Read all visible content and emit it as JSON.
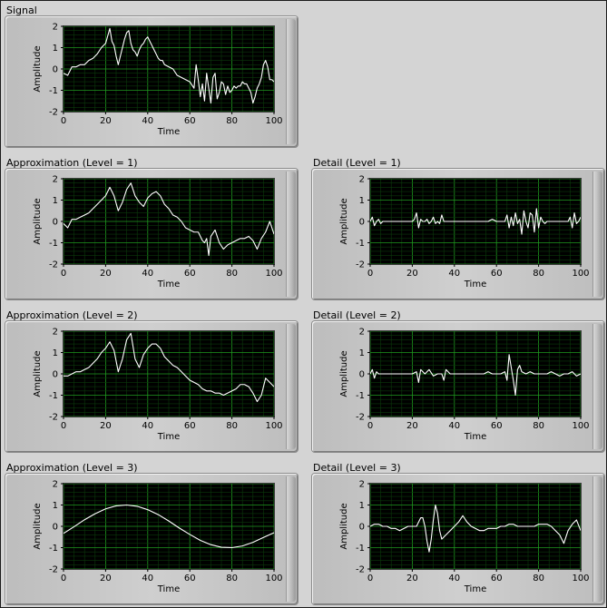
{
  "chart_data": [
    {
      "type": "line",
      "title": "Signal",
      "xlabel": "Time",
      "ylabel": "Amplitude",
      "xlim": [
        0,
        100
      ],
      "ylim": [
        -2,
        2
      ],
      "xticks": [
        "0",
        "20",
        "40",
        "60",
        "80",
        "100"
      ],
      "yticks": [
        "2",
        "1",
        "0",
        "-1",
        "-2"
      ],
      "grid": true,
      "colors": {
        "plot_bg": "#000000",
        "grid_major": "#1f9a1f",
        "grid_minor": "#0b3a0b",
        "line": "#ffffff"
      },
      "series": [
        {
          "x": [
            0,
            2,
            4,
            6,
            8,
            10,
            12,
            14,
            16,
            18,
            20,
            22,
            23,
            24,
            25,
            26,
            27,
            28,
            29,
            30,
            31,
            32,
            33,
            34,
            35,
            36,
            37,
            38,
            39,
            40,
            41,
            42,
            43,
            44,
            45,
            46,
            47,
            48,
            50,
            52,
            54,
            56,
            58,
            60,
            62,
            63,
            64,
            65,
            66,
            67,
            68,
            69,
            70,
            71,
            72,
            73,
            74,
            75,
            76,
            77,
            78,
            79,
            80,
            81,
            82,
            83,
            84,
            85,
            86,
            87,
            88,
            89,
            90,
            91,
            92,
            93,
            94,
            95,
            96,
            97,
            98,
            99,
            100
          ],
          "y": [
            -0.2,
            -0.3,
            0.1,
            0.1,
            0.2,
            0.2,
            0.4,
            0.5,
            0.7,
            1.0,
            1.2,
            1.9,
            1.3,
            1.1,
            0.6,
            0.2,
            0.6,
            1.0,
            1.4,
            1.7,
            1.8,
            1.2,
            0.9,
            0.8,
            0.6,
            0.9,
            1.1,
            1.2,
            1.4,
            1.5,
            1.3,
            1.1,
            0.9,
            0.7,
            0.5,
            0.4,
            0.4,
            0.2,
            0.1,
            0.0,
            -0.3,
            -0.4,
            -0.5,
            -0.6,
            -0.9,
            0.2,
            -0.5,
            -1.3,
            -0.7,
            -1.5,
            -0.2,
            -0.9,
            -1.6,
            -0.4,
            -0.2,
            -1.4,
            -1.1,
            -0.6,
            -0.7,
            -1.2,
            -0.8,
            -1.1,
            -1.0,
            -0.8,
            -0.9,
            -0.8,
            -0.8,
            -0.6,
            -0.7,
            -0.7,
            -0.9,
            -1.1,
            -1.6,
            -1.3,
            -0.9,
            -0.7,
            -0.4,
            0.2,
            0.4,
            0.1,
            -0.5,
            -0.5,
            -0.6
          ]
        }
      ]
    },
    {
      "type": "line",
      "title": "Approximation (Level = 1)",
      "xlabel": "Time",
      "ylabel": "Amplitude",
      "xlim": [
        0,
        100
      ],
      "ylim": [
        -2,
        2
      ],
      "xticks": [
        "0",
        "20",
        "40",
        "60",
        "80",
        "100"
      ],
      "yticks": [
        "2",
        "1",
        "0",
        "-1",
        "-2"
      ],
      "grid": true,
      "colors": {
        "plot_bg": "#000000",
        "grid_major": "#1f9a1f",
        "grid_minor": "#0b3a0b",
        "line": "#ffffff"
      },
      "series": [
        {
          "x": [
            0,
            2,
            4,
            6,
            8,
            10,
            12,
            14,
            16,
            18,
            20,
            22,
            24,
            26,
            28,
            30,
            32,
            34,
            36,
            38,
            40,
            42,
            44,
            46,
            48,
            50,
            52,
            54,
            56,
            58,
            60,
            62,
            64,
            66,
            67,
            68,
            69,
            70,
            72,
            74,
            76,
            78,
            80,
            82,
            84,
            86,
            88,
            90,
            92,
            94,
            96,
            98,
            100
          ],
          "y": [
            -0.1,
            -0.3,
            0.1,
            0.1,
            0.2,
            0.3,
            0.4,
            0.6,
            0.8,
            1.0,
            1.2,
            1.6,
            1.2,
            0.5,
            0.9,
            1.5,
            1.8,
            1.2,
            0.9,
            0.7,
            1.1,
            1.3,
            1.4,
            1.2,
            0.8,
            0.6,
            0.3,
            0.2,
            0.0,
            -0.3,
            -0.4,
            -0.5,
            -0.5,
            -0.9,
            -1.0,
            -0.8,
            -1.6,
            -0.7,
            -0.4,
            -1.0,
            -1.3,
            -1.1,
            -1.0,
            -0.9,
            -0.8,
            -0.8,
            -0.7,
            -0.9,
            -1.3,
            -0.8,
            -0.5,
            0.0,
            -0.6
          ]
        }
      ]
    },
    {
      "type": "line",
      "title": "Detail (Level = 1)",
      "xlabel": "Time",
      "ylabel": "Amplitude",
      "xlim": [
        0,
        100
      ],
      "ylim": [
        -2,
        2
      ],
      "xticks": [
        "0",
        "20",
        "40",
        "60",
        "80",
        "100"
      ],
      "yticks": [
        "2",
        "1",
        "0",
        "-1",
        "-2"
      ],
      "grid": true,
      "colors": {
        "plot_bg": "#000000",
        "grid_major": "#1f9a1f",
        "grid_minor": "#0b3a0b",
        "line": "#ffffff"
      },
      "series": [
        {
          "x": [
            0,
            1,
            2,
            3,
            4,
            5,
            6,
            8,
            10,
            12,
            14,
            16,
            18,
            20,
            21,
            22,
            23,
            24,
            25,
            26,
            27,
            28,
            29,
            30,
            31,
            32,
            33,
            34,
            35,
            36,
            38,
            40,
            42,
            44,
            46,
            48,
            50,
            52,
            54,
            56,
            58,
            60,
            62,
            64,
            65,
            66,
            67,
            68,
            69,
            70,
            71,
            72,
            73,
            74,
            75,
            76,
            77,
            78,
            79,
            80,
            81,
            82,
            83,
            84,
            86,
            88,
            90,
            92,
            94,
            95,
            96,
            97,
            98,
            99,
            100
          ],
          "y": [
            0.0,
            0.2,
            -0.2,
            0.0,
            0.1,
            -0.1,
            0.0,
            0.0,
            0.0,
            0.0,
            0.0,
            0.0,
            0.0,
            0.0,
            0.1,
            0.4,
            -0.3,
            0.1,
            0.0,
            0.0,
            0.1,
            -0.1,
            0.0,
            0.2,
            -0.1,
            0.0,
            -0.1,
            0.3,
            0.0,
            0.0,
            0.0,
            0.0,
            0.0,
            0.0,
            0.0,
            0.0,
            0.0,
            0.0,
            0.0,
            0.0,
            0.1,
            0.0,
            0.0,
            0.0,
            0.3,
            -0.3,
            0.2,
            -0.2,
            0.4,
            -0.1,
            0.1,
            -0.6,
            0.5,
            0.0,
            -0.3,
            0.4,
            0.3,
            -0.5,
            0.6,
            -0.3,
            0.2,
            0.0,
            -0.1,
            0.0,
            0.0,
            0.0,
            0.0,
            0.0,
            0.0,
            0.2,
            -0.3,
            0.4,
            -0.1,
            0.0,
            0.2
          ]
        }
      ]
    },
    {
      "type": "line",
      "title": "Approximation (Level = 2)",
      "xlabel": "Time",
      "ylabel": "Amplitude",
      "xlim": [
        0,
        100
      ],
      "ylim": [
        -2,
        2
      ],
      "xticks": [
        "0",
        "20",
        "40",
        "60",
        "80",
        "100"
      ],
      "yticks": [
        "2",
        "1",
        "0",
        "-1",
        "-2"
      ],
      "grid": true,
      "colors": {
        "plot_bg": "#000000",
        "grid_major": "#1f9a1f",
        "grid_minor": "#0b3a0b",
        "line": "#ffffff"
      },
      "series": [
        {
          "x": [
            0,
            2,
            4,
            6,
            8,
            10,
            12,
            14,
            16,
            18,
            20,
            22,
            24,
            26,
            28,
            30,
            32,
            34,
            36,
            38,
            40,
            42,
            44,
            46,
            48,
            50,
            52,
            54,
            56,
            58,
            60,
            62,
            64,
            66,
            68,
            70,
            72,
            74,
            76,
            78,
            80,
            82,
            84,
            86,
            88,
            90,
            92,
            94,
            96,
            98,
            100
          ],
          "y": [
            -0.1,
            -0.1,
            0.0,
            0.1,
            0.1,
            0.2,
            0.3,
            0.5,
            0.7,
            1.0,
            1.2,
            1.5,
            1.1,
            0.1,
            0.7,
            1.6,
            1.9,
            0.7,
            0.3,
            0.9,
            1.2,
            1.4,
            1.4,
            1.2,
            0.8,
            0.6,
            0.4,
            0.3,
            0.1,
            -0.1,
            -0.3,
            -0.4,
            -0.5,
            -0.7,
            -0.8,
            -0.8,
            -0.9,
            -0.9,
            -1.0,
            -0.9,
            -0.8,
            -0.7,
            -0.5,
            -0.5,
            -0.6,
            -0.9,
            -1.3,
            -1.0,
            -0.2,
            -0.4,
            -0.6
          ]
        }
      ]
    },
    {
      "type": "line",
      "title": "Detail (Level = 2)",
      "xlabel": "Time",
      "ylabel": "Amplitude",
      "xlim": [
        0,
        100
      ],
      "ylim": [
        -2,
        2
      ],
      "xticks": [
        "0",
        "20",
        "40",
        "60",
        "80",
        "100"
      ],
      "yticks": [
        "2",
        "1",
        "0",
        "-1",
        "-2"
      ],
      "grid": true,
      "colors": {
        "plot_bg": "#000000",
        "grid_major": "#1f9a1f",
        "grid_minor": "#0b3a0b",
        "line": "#ffffff"
      },
      "series": [
        {
          "x": [
            0,
            1,
            2,
            3,
            4,
            6,
            8,
            10,
            12,
            14,
            16,
            18,
            20,
            22,
            23,
            24,
            26,
            28,
            30,
            32,
            34,
            35,
            36,
            38,
            40,
            42,
            44,
            46,
            48,
            50,
            52,
            54,
            56,
            58,
            60,
            62,
            64,
            65,
            66,
            67,
            68,
            69,
            70,
            71,
            72,
            74,
            76,
            78,
            80,
            82,
            84,
            86,
            88,
            90,
            92,
            94,
            96,
            98,
            100
          ],
          "y": [
            0.0,
            0.2,
            -0.2,
            0.1,
            0.0,
            0.0,
            0.0,
            0.0,
            0.0,
            0.0,
            0.0,
            0.0,
            0.0,
            0.1,
            -0.4,
            0.2,
            0.0,
            0.2,
            -0.1,
            0.0,
            0.0,
            -0.3,
            0.2,
            0.0,
            0.0,
            0.0,
            0.0,
            0.0,
            0.0,
            0.0,
            0.0,
            0.0,
            0.1,
            0.0,
            0.0,
            0.0,
            0.1,
            -0.3,
            0.9,
            0.3,
            -0.3,
            -1.0,
            0.2,
            0.4,
            0.1,
            0.0,
            0.1,
            0.0,
            0.0,
            0.0,
            0.0,
            0.1,
            0.0,
            -0.1,
            0.0,
            0.0,
            0.1,
            -0.1,
            0.0
          ]
        }
      ]
    },
    {
      "type": "line",
      "title": "Approximation (Level = 3)",
      "xlabel": "Time",
      "ylabel": "Amplitude",
      "xlim": [
        0,
        100
      ],
      "ylim": [
        -2,
        2
      ],
      "xticks": [
        "0",
        "20",
        "40",
        "60",
        "80",
        "100"
      ],
      "yticks": [
        "2",
        "1",
        "0",
        "-1",
        "-2"
      ],
      "grid": true,
      "colors": {
        "plot_bg": "#000000",
        "grid_major": "#1f9a1f",
        "grid_minor": "#0b3a0b",
        "line": "#ffffff"
      },
      "series": [
        {
          "x": [
            0,
            5,
            10,
            15,
            20,
            25,
            30,
            35,
            40,
            45,
            50,
            55,
            60,
            65,
            70,
            75,
            80,
            85,
            90,
            95,
            100
          ],
          "y": [
            -0.33,
            -0.02,
            0.31,
            0.59,
            0.82,
            0.96,
            1.0,
            0.94,
            0.78,
            0.55,
            0.25,
            -0.08,
            -0.38,
            -0.66,
            -0.86,
            -0.98,
            -1.0,
            -0.92,
            -0.75,
            -0.52,
            -0.3
          ]
        }
      ]
    },
    {
      "type": "line",
      "title": "Detail (Level = 3)",
      "xlabel": "Time",
      "ylabel": "Amplitude",
      "xlim": [
        0,
        100
      ],
      "ylim": [
        -2,
        2
      ],
      "xticks": [
        "0",
        "20",
        "40",
        "60",
        "80",
        "100"
      ],
      "yticks": [
        "2",
        "1",
        "0",
        "-1",
        "-2"
      ],
      "grid": true,
      "colors": {
        "plot_bg": "#000000",
        "grid_major": "#1f9a1f",
        "grid_minor": "#0b3a0b",
        "line": "#ffffff"
      },
      "series": [
        {
          "x": [
            0,
            2,
            4,
            6,
            8,
            10,
            12,
            14,
            16,
            18,
            20,
            22,
            24,
            25,
            26,
            27,
            28,
            29,
            30,
            31,
            32,
            33,
            34,
            36,
            38,
            40,
            42,
            44,
            46,
            48,
            50,
            52,
            54,
            56,
            58,
            60,
            62,
            64,
            66,
            68,
            70,
            72,
            74,
            76,
            78,
            80,
            82,
            84,
            86,
            88,
            90,
            92,
            94,
            96,
            98,
            100
          ],
          "y": [
            0.0,
            0.1,
            0.1,
            0.0,
            0.0,
            -0.1,
            -0.1,
            -0.2,
            -0.1,
            0.0,
            0.0,
            0.0,
            0.4,
            0.4,
            0.0,
            -0.7,
            -1.2,
            -0.6,
            0.3,
            1.0,
            0.6,
            -0.2,
            -0.6,
            -0.4,
            -0.2,
            0.0,
            0.2,
            0.5,
            0.2,
            0.0,
            -0.1,
            -0.2,
            -0.2,
            -0.1,
            -0.1,
            -0.1,
            0.0,
            0.0,
            0.1,
            0.1,
            0.0,
            0.0,
            0.0,
            0.0,
            0.0,
            0.1,
            0.1,
            0.1,
            0.0,
            -0.2,
            -0.4,
            -0.8,
            -0.2,
            0.1,
            0.3,
            -0.2
          ]
        }
      ]
    }
  ]
}
